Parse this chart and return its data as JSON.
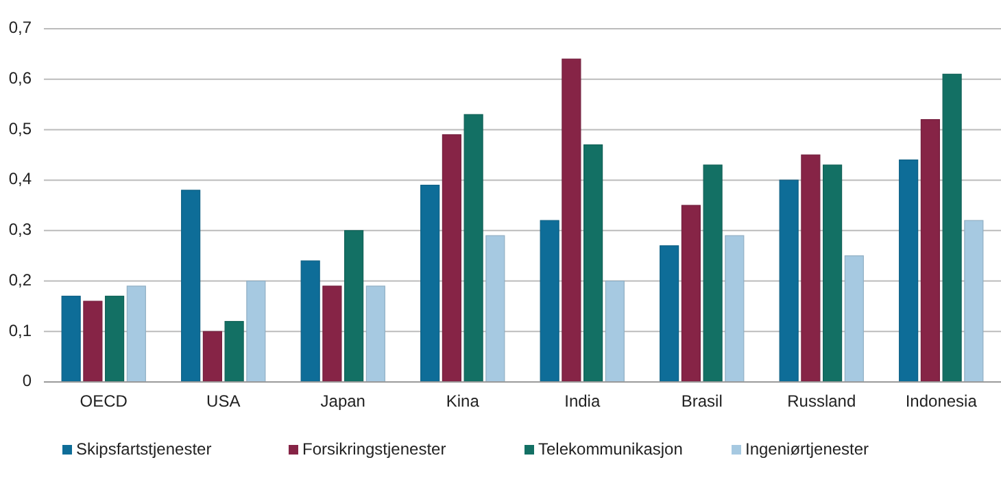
{
  "chart_data": {
    "type": "bar",
    "categories": [
      "OECD",
      "USA",
      "Japan",
      "Kina",
      "India",
      "Brasil",
      "Russland",
      "Indonesia"
    ],
    "series": [
      {
        "name": "Skipsfartstjenester",
        "color": "#0e6d98",
        "values": [
          0.17,
          0.38,
          0.24,
          0.39,
          0.32,
          0.27,
          0.4,
          0.44
        ]
      },
      {
        "name": "Forsikringstjenester",
        "color": "#862446",
        "values": [
          0.16,
          0.1,
          0.19,
          0.49,
          0.64,
          0.35,
          0.45,
          0.52
        ]
      },
      {
        "name": "Telekommunikasjon",
        "color": "#137064",
        "values": [
          0.17,
          0.12,
          0.3,
          0.53,
          0.47,
          0.43,
          0.43,
          0.61
        ]
      },
      {
        "name": "Ingeniørtjenester",
        "color": "#a6c9e1",
        "values": [
          0.19,
          0.2,
          0.19,
          0.29,
          0.2,
          0.29,
          0.25,
          0.32
        ]
      }
    ],
    "ylim": [
      0,
      0.7
    ],
    "yticks": [
      0,
      {
        "value": 0.1,
        "label": "0,1"
      },
      {
        "value": 0.2,
        "label": "0,2"
      },
      {
        "value": 0.3,
        "label": "0,3"
      },
      {
        "value": 0.4,
        "label": "0,4"
      },
      {
        "value": 0.5,
        "label": "0,5"
      },
      {
        "value": 0.6,
        "label": "0,6"
      },
      {
        "value": 0.7,
        "label": "0,7"
      }
    ],
    "grid": "y",
    "legend": "bottom"
  }
}
